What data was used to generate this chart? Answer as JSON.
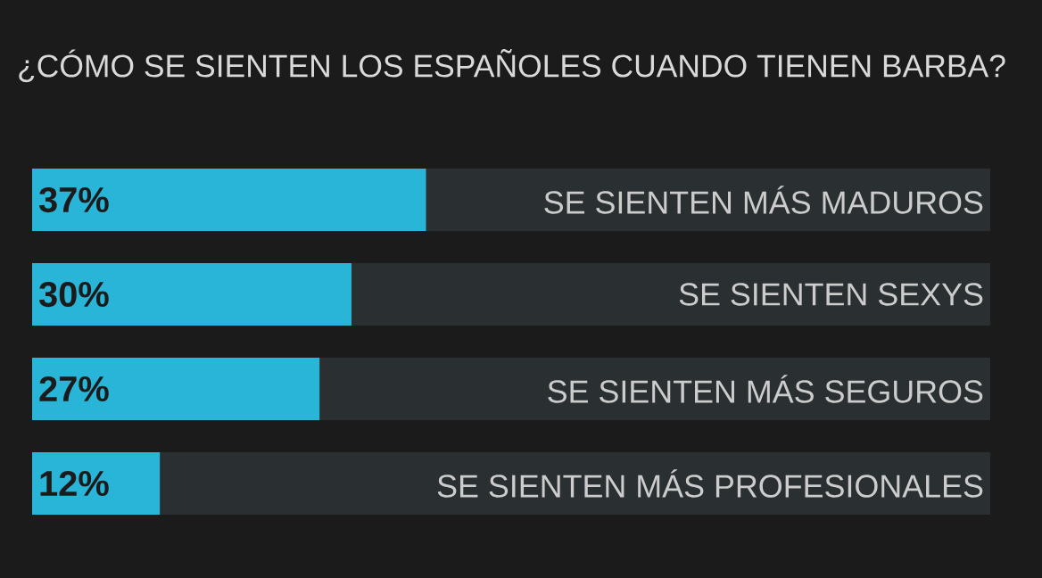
{
  "chart_data": {
    "type": "bar",
    "orientation": "horizontal",
    "title": "¿CÓMO SE SIENTEN LOS ESPAÑOLES CUANDO TIENEN BARBA?",
    "categories": [
      "SE SIENTEN MÁS MADUROS",
      "SE SIENTEN SEXYS",
      "SE SIENTEN MÁS SEGUROS",
      "SE SIENTEN MÁS PROFESIONALES"
    ],
    "values": [
      37,
      30,
      27,
      12
    ],
    "value_labels": [
      "37%",
      "30%",
      "27%",
      "12%"
    ],
    "color": "#29b5d8",
    "xlim": [
      0,
      90
    ]
  }
}
